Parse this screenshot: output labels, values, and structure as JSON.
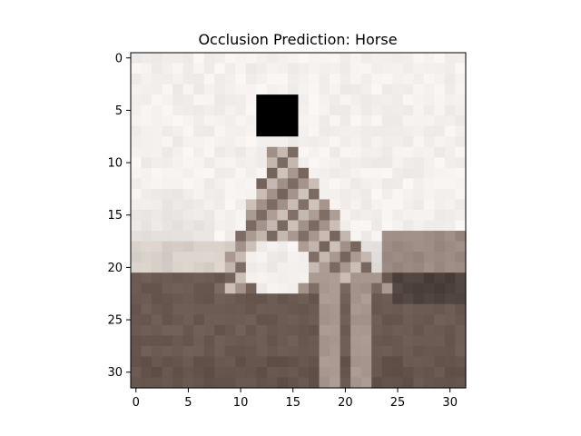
{
  "title": "Occlusion Prediction: Horse",
  "image": {
    "grid_size": 32,
    "occlusion_patch": {
      "rows": [
        4,
        7
      ],
      "cols": [
        12,
        15
      ],
      "color": "#000000"
    },
    "colors": {
      "sky": "#f4f0ed",
      "ground": "#6a5a52",
      "ground_dark": "#4e423c",
      "horse_light": "#c8bcb5",
      "horse_mid": "#a6968d",
      "horse_dark": "#7a6a61",
      "highlight": "#f2eeeb"
    }
  },
  "axes": {
    "x_ticks": [
      "0",
      "5",
      "10",
      "15",
      "20",
      "25",
      "30"
    ],
    "y_ticks": [
      "0",
      "5",
      "10",
      "15",
      "20",
      "25",
      "30"
    ]
  }
}
